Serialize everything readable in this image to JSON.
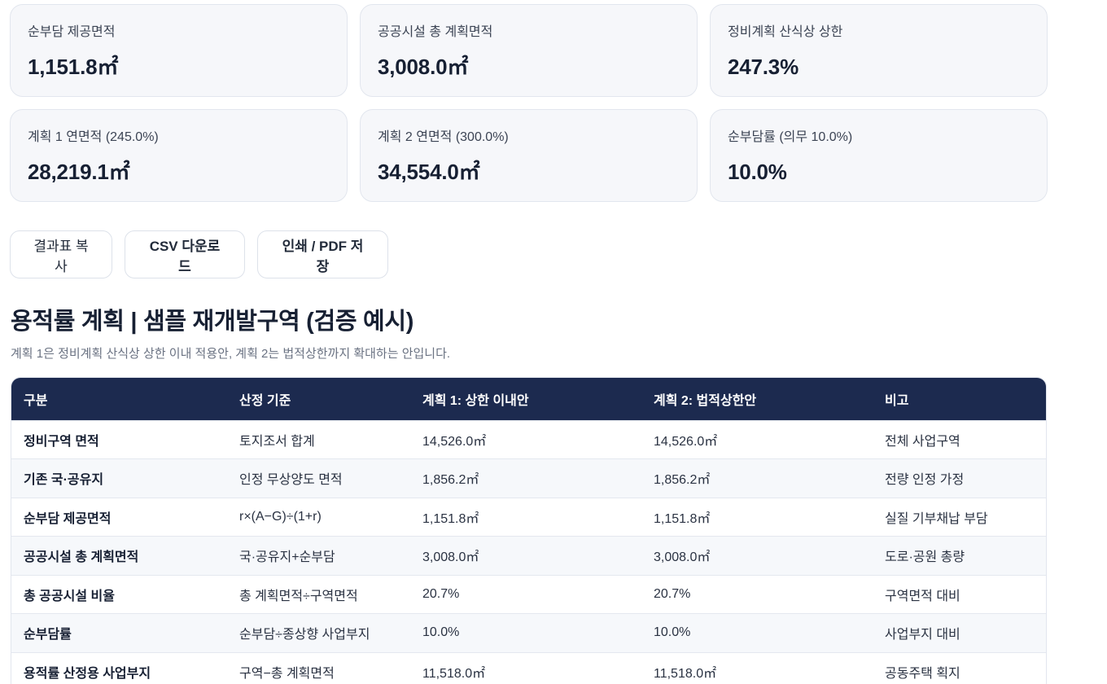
{
  "summary_cards": [
    {
      "label": "순부담 제공면적",
      "value": "1,151.8㎡"
    },
    {
      "label": "공공시설 총 계획면적",
      "value": "3,008.0㎡"
    },
    {
      "label": "정비계획 산식상 상한",
      "value": "247.3%"
    },
    {
      "label": "계획 1 연면적 (245.0%)",
      "value": "28,219.1㎡"
    },
    {
      "label": "계획 2 연면적 (300.0%)",
      "value": "34,554.0㎡"
    },
    {
      "label": "순부담률 (의무 10.0%)",
      "value": "10.0%"
    }
  ],
  "actions": {
    "copy_label": "결과표 복사",
    "csv_label": "CSV 다운로드",
    "print_label": "인쇄 / PDF 저장"
  },
  "section": {
    "title": "용적률 계획 | 샘플 재개발구역 (검증 예시)",
    "description": "계획 1은 정비계획 산식상 상한 이내 적용안, 계획 2는 법적상한까지 확대하는 안입니다."
  },
  "table": {
    "headers": [
      "구분",
      "산정 기준",
      "계획 1: 상한 이내안",
      "계획 2: 법적상한안",
      "비고"
    ],
    "rows": [
      [
        "정비구역 면적",
        "토지조서 합계",
        "14,526.0㎡",
        "14,526.0㎡",
        "전체 사업구역"
      ],
      [
        "기존 국·공유지",
        "인정 무상양도 면적",
        "1,856.2㎡",
        "1,856.2㎡",
        "전량 인정 가정"
      ],
      [
        "순부담 제공면적",
        "r×(A−G)÷(1+r)",
        "1,151.8㎡",
        "1,151.8㎡",
        "실질 기부채납 부담"
      ],
      [
        "공공시설 총 계획면적",
        "국·공유지+순부담",
        "3,008.0㎡",
        "3,008.0㎡",
        "도로·공원 총량"
      ],
      [
        "총 공공시설 비율",
        "총 계획면적÷구역면적",
        "20.7%",
        "20.7%",
        "구역면적 대비"
      ],
      [
        "순부담률",
        "순부담÷종상향 사업부지",
        "10.0%",
        "10.0%",
        "사업부지 대비"
      ],
      [
        "용적률 산정용 사업부지",
        "구역−총 계획면적",
        "11,518.0㎡",
        "11,518.0㎡",
        "공동주택 획지"
      ]
    ]
  }
}
